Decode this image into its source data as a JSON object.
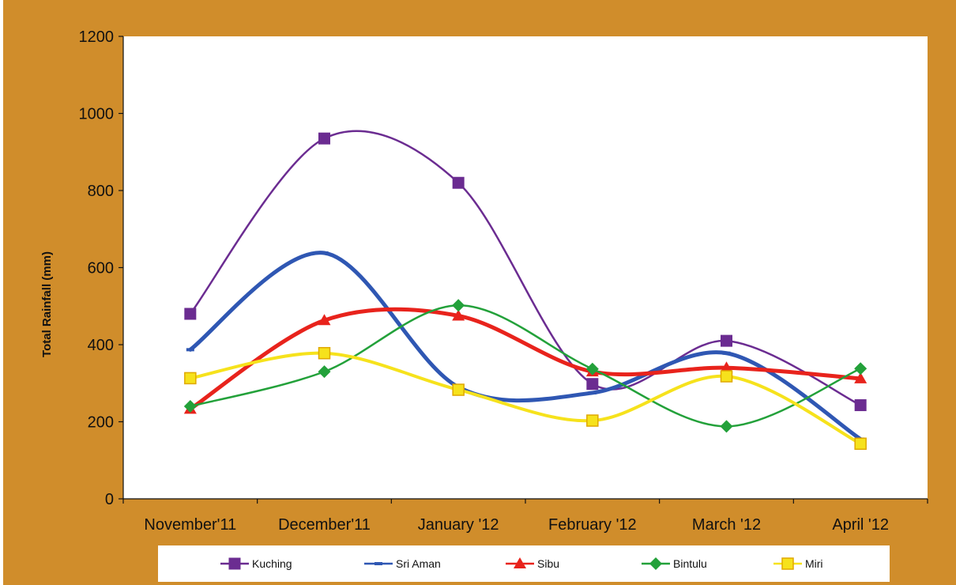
{
  "chart_data": {
    "type": "line",
    "title": "",
    "xlabel": "",
    "ylabel": "Total Rainfall (mm)",
    "ylim": [
      0,
      1200
    ],
    "yticks": [
      0,
      200,
      400,
      600,
      800,
      1000,
      1200
    ],
    "categories": [
      "November'11",
      "December'11",
      "January '12",
      "February '12",
      "March '12",
      "April '12"
    ],
    "smooth": true,
    "grid": false,
    "legend_position": "bottom",
    "series": [
      {
        "name": "Kuching",
        "color": "#6b2c91",
        "marker": "square",
        "values": [
          480,
          935,
          820,
          298,
          410,
          243
        ]
      },
      {
        "name": "Sri Aman",
        "color": "#2f57b3",
        "marker": "dash",
        "values": [
          387,
          638,
          290,
          275,
          378,
          155
        ]
      },
      {
        "name": "Sibu",
        "color": "#e8231c",
        "marker": "triangle",
        "values": [
          233,
          463,
          475,
          330,
          340,
          312
        ]
      },
      {
        "name": "Bintulu",
        "color": "#23a13a",
        "marker": "diamond",
        "values": [
          240,
          330,
          502,
          337,
          188,
          338
        ]
      },
      {
        "name": "Miri",
        "color": "#f6e21c",
        "marker": "square-outline",
        "values": [
          313,
          378,
          283,
          203,
          318,
          143
        ]
      }
    ]
  }
}
